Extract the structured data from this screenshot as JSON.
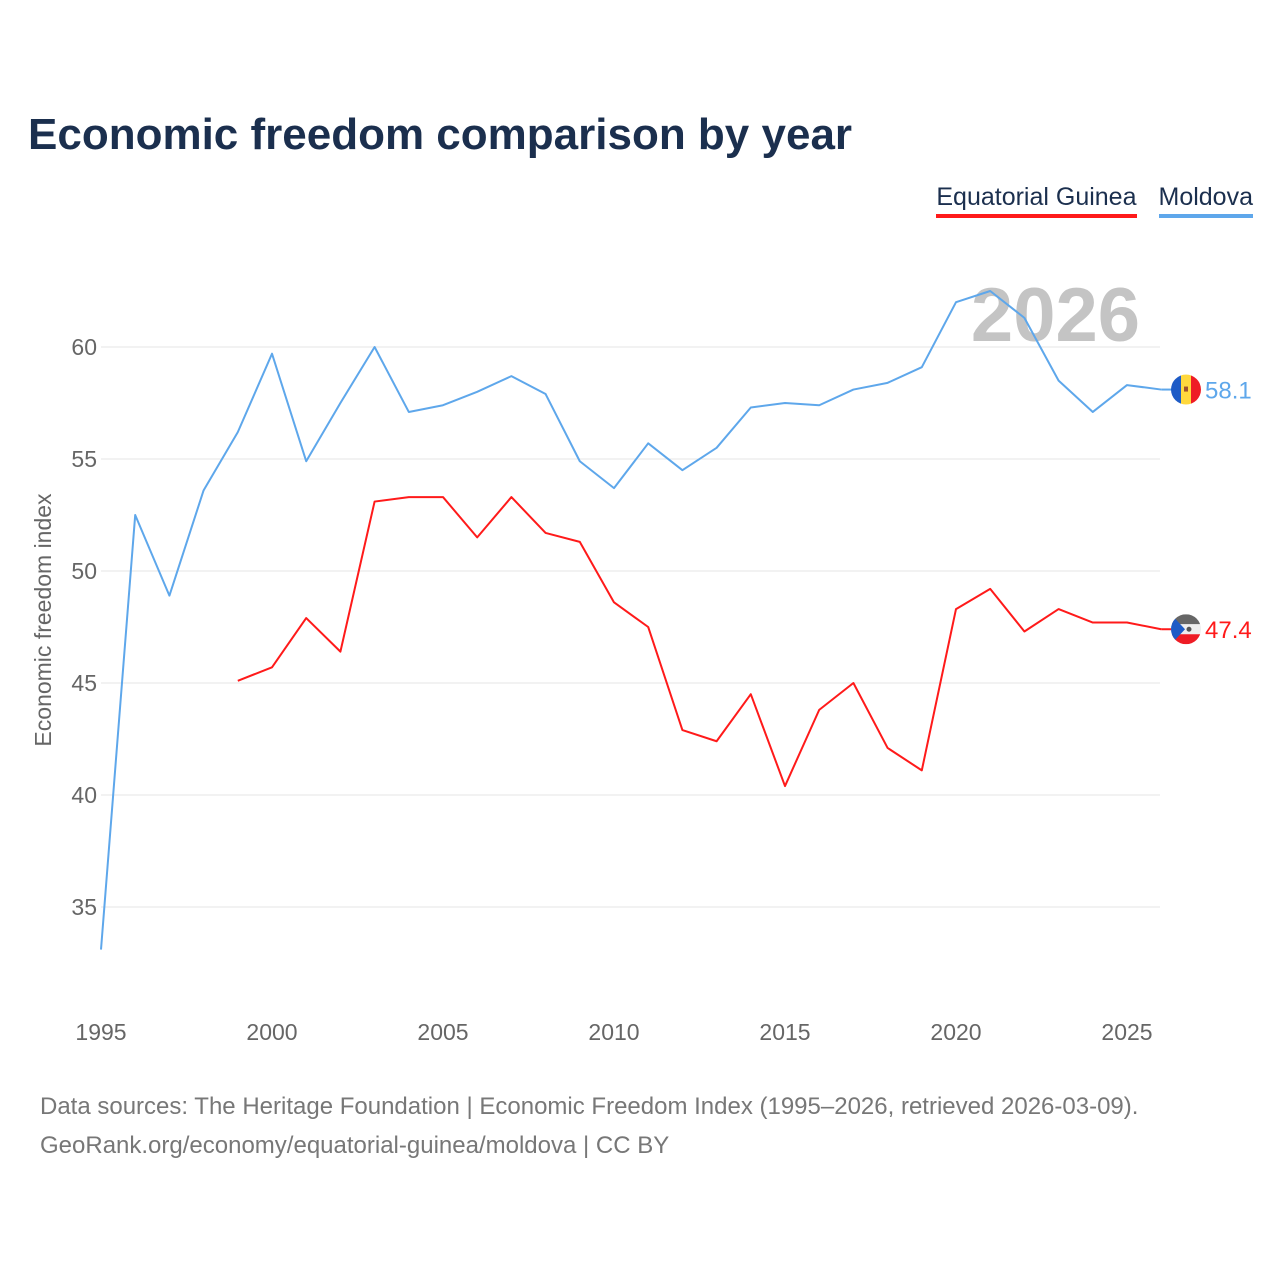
{
  "chart_data": {
    "type": "line",
    "title": "Economic freedom comparison by year",
    "ylabel": "Economic freedom index",
    "xlabel": "",
    "xlim": [
      1995,
      2026
    ],
    "ylim": [
      31,
      64
    ],
    "xticks": [
      1995,
      2000,
      2005,
      2010,
      2015,
      2020,
      2025
    ],
    "yticks": [
      35,
      40,
      45,
      50,
      55,
      60
    ],
    "grid": true,
    "legend_placement": "top-right",
    "year_watermark": "2026",
    "series": [
      {
        "name": "Equatorial Guinea",
        "color": "#ff1a1a",
        "end_label": "47.4",
        "x": [
          1999,
          2000,
          2001,
          2002,
          2003,
          2004,
          2005,
          2006,
          2007,
          2008,
          2009,
          2010,
          2011,
          2012,
          2013,
          2014,
          2015,
          2016,
          2017,
          2018,
          2019,
          2020,
          2021,
          2022,
          2023,
          2024,
          2025,
          2026
        ],
        "values": [
          45.1,
          45.7,
          47.9,
          46.4,
          53.1,
          53.3,
          53.3,
          51.5,
          53.3,
          51.7,
          51.3,
          48.6,
          47.5,
          42.9,
          42.4,
          44.5,
          40.4,
          43.8,
          45.0,
          42.1,
          41.1,
          48.3,
          49.2,
          47.3,
          48.3,
          47.7,
          47.7,
          47.4
        ]
      },
      {
        "name": "Moldova",
        "color": "#5ea7eb",
        "end_label": "58.1",
        "x": [
          1995,
          1996,
          1997,
          1998,
          1999,
          2000,
          2001,
          2002,
          2003,
          2004,
          2005,
          2006,
          2007,
          2008,
          2009,
          2010,
          2011,
          2012,
          2013,
          2014,
          2015,
          2016,
          2017,
          2018,
          2019,
          2020,
          2021,
          2022,
          2023,
          2024,
          2025,
          2026
        ],
        "values": [
          33.1,
          52.5,
          48.9,
          53.6,
          56.2,
          59.7,
          54.9,
          57.5,
          60.0,
          57.1,
          57.4,
          58.0,
          58.7,
          57.9,
          54.9,
          53.7,
          55.7,
          54.5,
          55.5,
          57.3,
          57.5,
          57.4,
          58.1,
          58.4,
          59.1,
          62.0,
          62.5,
          61.3,
          58.5,
          57.1,
          58.3,
          58.1
        ]
      }
    ]
  },
  "source": {
    "line1": "Data sources: The Heritage Foundation | Economic Freedom Index (1995–2026, retrieved 2026-03-09).",
    "line2": "GeoRank.org/economy/equatorial-guinea/moldova | CC BY"
  }
}
